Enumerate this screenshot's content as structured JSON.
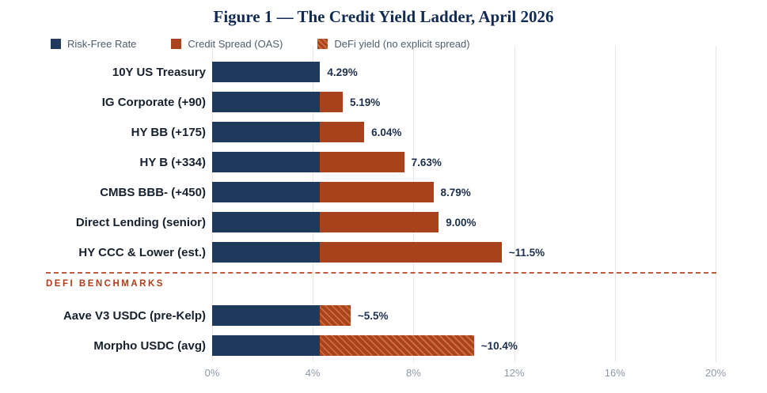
{
  "title": "Figure 1 — The Credit Yield Ladder, April 2026",
  "legend": {
    "items": [
      {
        "label": "Risk-Free Rate",
        "swatch": "navy-solid"
      },
      {
        "label": "Credit Spread (OAS)",
        "swatch": "rust-solid"
      },
      {
        "label": "DeFi yield (no explicit spread)",
        "swatch": "rust-hatched"
      }
    ]
  },
  "section_divider": {
    "label": "DEFI BENCHMARKS"
  },
  "colors": {
    "risk_free": "#1f3a5c",
    "credit_spread": "#a8431d",
    "hatch_stripe": "#cd6d3d",
    "divider": "#c25b3d",
    "defi_heading": "#b03c1b",
    "gridline": "#ebe8e1",
    "axis_tick_text": "#8d99a7",
    "title_text": "#132b52",
    "value_text": "#1d2f4e",
    "category_text": "#17212d",
    "legend_text": "#4e5d6e",
    "background": "#ffffff"
  },
  "chart_data": {
    "type": "bar",
    "orientation": "horizontal",
    "stacked": true,
    "title": "Figure 1 — The Credit Yield Ladder, April 2026",
    "series_names": [
      "Risk-Free Rate",
      "Credit Spread (OAS)",
      "DeFi yield (no explicit spread)"
    ],
    "risk_free_rate_pct": 4.29,
    "x_axis": {
      "tick_labels": [
        "0%",
        "4%",
        "8%",
        "12%",
        "16%",
        "20%"
      ],
      "min": 0,
      "max": 20,
      "grid": true,
      "unit": "%"
    },
    "legend_position": "top-left",
    "bars": [
      {
        "label": "10Y US Treasury",
        "group": "credit",
        "risk_free": 4.29,
        "spread": 0,
        "total": 4.29,
        "value_label": "4.29%",
        "spread_style": "solid"
      },
      {
        "label": "IG Corporate (+90)",
        "group": "credit",
        "risk_free": 4.29,
        "spread": 0.9,
        "total": 5.19,
        "value_label": "5.19%",
        "spread_style": "solid"
      },
      {
        "label": "HY BB (+175)",
        "group": "credit",
        "risk_free": 4.29,
        "spread": 1.75,
        "total": 6.04,
        "value_label": "6.04%",
        "spread_style": "solid"
      },
      {
        "label": "HY B (+334)",
        "group": "credit",
        "risk_free": 4.29,
        "spread": 3.34,
        "total": 7.63,
        "value_label": "7.63%",
        "spread_style": "solid"
      },
      {
        "label": "CMBS BBB- (+450)",
        "group": "credit",
        "risk_free": 4.29,
        "spread": 4.5,
        "total": 8.79,
        "value_label": "8.79%",
        "spread_style": "solid"
      },
      {
        "label": "Direct Lending (senior)",
        "group": "credit",
        "risk_free": 4.29,
        "spread": 4.71,
        "total": 9.0,
        "value_label": "9.00%",
        "spread_style": "solid"
      },
      {
        "label": "HY CCC & Lower (est.)",
        "group": "credit",
        "risk_free": 4.29,
        "spread": 7.21,
        "total": 11.5,
        "value_label": "~11.5%",
        "spread_style": "solid"
      },
      {
        "label": "Aave V3 USDC (pre-Kelp)",
        "group": "defi",
        "risk_free": 4.29,
        "spread": 1.21,
        "total": 5.5,
        "value_label": "~5.5%",
        "spread_style": "hatched"
      },
      {
        "label": "Morpho USDC (avg)",
        "group": "defi",
        "risk_free": 4.29,
        "spread": 6.11,
        "total": 10.4,
        "value_label": "~10.4%",
        "spread_style": "hatched"
      }
    ]
  }
}
